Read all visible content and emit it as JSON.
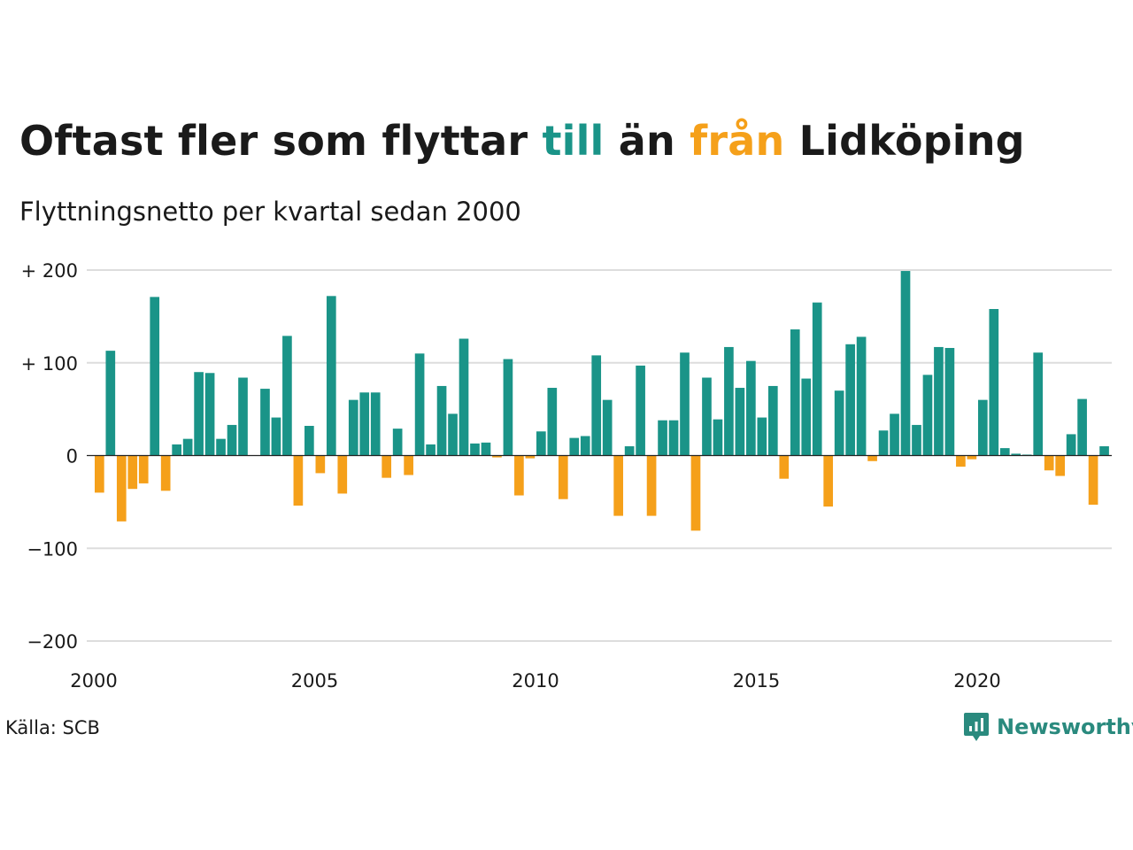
{
  "title": {
    "part1": "Oftast fler som flyttar ",
    "till": "till",
    "part2": " än ",
    "fran": "från",
    "part3": " Lidköping"
  },
  "subtitle": "Flyttningsnetto per kvartal sedan 2000",
  "source": "Källa: SCB",
  "brand": "Newsworthy",
  "colors": {
    "positive": "#1a9488",
    "negative": "#f5a01a",
    "grid": "#dddddd",
    "brand": "#2a8a7e"
  },
  "chart_data": {
    "type": "bar",
    "x_start_year": 2000,
    "periods_per_year": 4,
    "ylim": [
      -200,
      200
    ],
    "y_ticks": [
      {
        "value": 200,
        "label": "+ 200"
      },
      {
        "value": 100,
        "label": "+ 100"
      },
      {
        "value": 0,
        "label": "0"
      },
      {
        "value": -100,
        "label": "−100"
      },
      {
        "value": -200,
        "label": "−200"
      }
    ],
    "x_ticks": [
      {
        "year": 2000,
        "label": "2000"
      },
      {
        "year": 2005,
        "label": "2005"
      },
      {
        "year": 2010,
        "label": "2010"
      },
      {
        "year": 2015,
        "label": "2015"
      },
      {
        "year": 2020,
        "label": "2020"
      }
    ],
    "values": [
      -40,
      113,
      -71,
      -36,
      -30,
      171,
      -38,
      12,
      18,
      90,
      89,
      18,
      33,
      84,
      0,
      72,
      41,
      129,
      -54,
      32,
      -19,
      172,
      -41,
      60,
      68,
      68,
      -24,
      29,
      -21,
      110,
      12,
      75,
      45,
      126,
      13,
      14,
      -2,
      104,
      -43,
      -3,
      26,
      73,
      -47,
      19,
      21,
      108,
      60,
      -65,
      10,
      97,
      -65,
      38,
      38,
      111,
      -81,
      84,
      39,
      117,
      73,
      102,
      41,
      75,
      -25,
      136,
      83,
      165,
      -55,
      70,
      120,
      128,
      -6,
      27,
      45,
      199,
      33,
      87,
      117,
      116,
      -12,
      -4,
      60,
      158,
      8,
      2,
      1,
      111,
      -16,
      -22,
      23,
      61,
      -53,
      10
    ]
  }
}
